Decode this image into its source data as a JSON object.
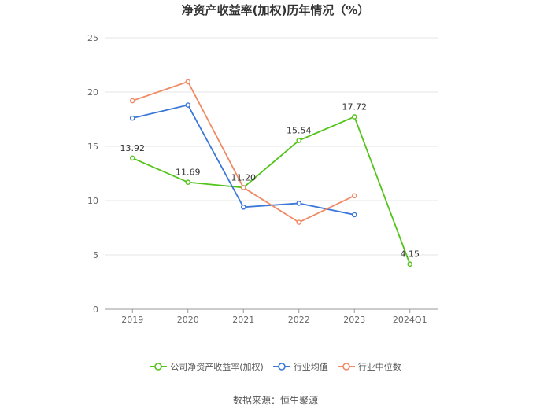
{
  "title": "净资产收益率(加权)历年情况（%）",
  "source": "数据来源：恒生聚源",
  "chart_data": {
    "type": "line",
    "title": "净资产收益率(加权)历年情况（%）",
    "categories": [
      "2019",
      "2020",
      "2021",
      "2022",
      "2023",
      "2024Q1"
    ],
    "ylim": [
      0,
      25
    ],
    "yticks": [
      0,
      5,
      10,
      15,
      20,
      25
    ],
    "grid": true,
    "legend_position": "bottom",
    "series": [
      {
        "name": "公司净资产收益率(加权)",
        "color": "#52c41a",
        "values": [
          13.92,
          11.69,
          11.2,
          15.54,
          17.72,
          4.15
        ],
        "labels": [
          "13.92",
          "11.69",
          "11.20",
          "15.54",
          "17.72",
          "4.15"
        ]
      },
      {
        "name": "行业均值",
        "color": "#3b78d8",
        "values": [
          17.6,
          18.8,
          9.4,
          9.75,
          8.7,
          null
        ]
      },
      {
        "name": "行业中位数",
        "color": "#f08a65",
        "values": [
          19.2,
          20.95,
          11.2,
          8.0,
          10.45,
          null
        ]
      }
    ]
  }
}
